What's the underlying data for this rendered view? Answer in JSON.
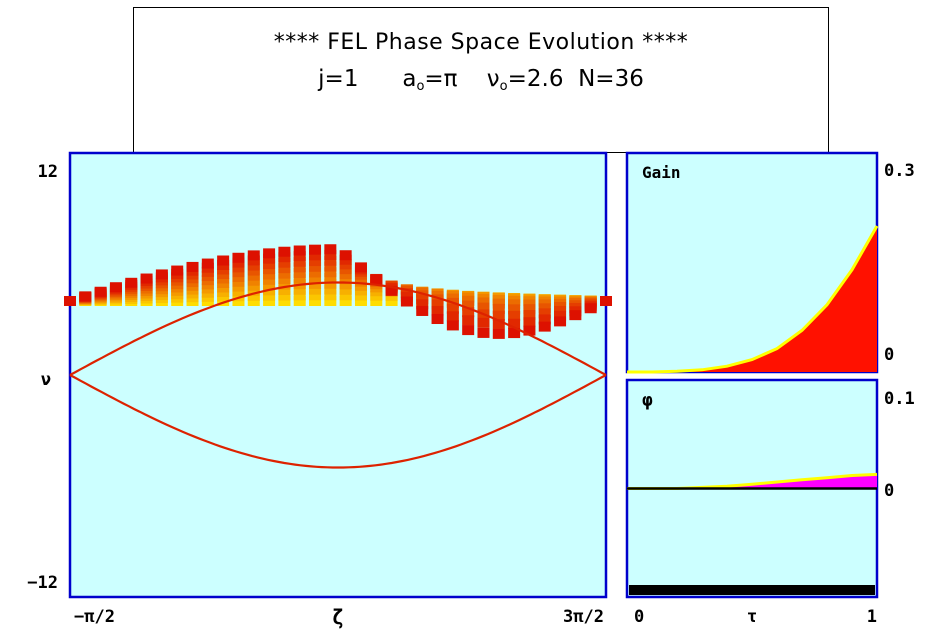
{
  "title": {
    "line1": "****   FEL Phase Space Evolution   ****",
    "j": "j=1",
    "a": "a",
    "a_sub": "o",
    "a_val": "=π",
    "nu": "ν",
    "nu_sub": "o",
    "nu_val": "=2.6",
    "n": "N=36"
  },
  "colors": {
    "panel_bg": "#ccffff",
    "frame": "#0000cc",
    "separatrix": "#dd2200",
    "electrons_hot": "#dd1100",
    "electrons_cold": "#ffdd00",
    "gain_fill": "#ff1100",
    "phase_fill": "#ff00ff",
    "trace_line": "#ffff00",
    "axis_bar": "#000000"
  },
  "chart_data": [
    {
      "type": "scatter",
      "name": "phase-space",
      "xlabel": "ζ",
      "ylabel": "ν",
      "x_tick_labels": [
        "−π/2",
        "3π/2"
      ],
      "y_tick_labels": [
        "12",
        "−12"
      ],
      "xlim": [
        -1.5708,
        4.7124
      ],
      "ylim": [
        -12,
        12
      ],
      "resonance_nu": 0,
      "separatrix": {
        "center_zeta": 1.5708,
        "upper_max_nu": 5.0,
        "lower_min_nu": -5.0,
        "endpoints_zeta": [
          -1.5708,
          4.7124
        ]
      },
      "electron_band": {
        "initial_nu": 4.0,
        "final_max_nu": 6.8,
        "final_min_nu": 0.0,
        "columns": 36
      }
    },
    {
      "type": "area",
      "name": "gain",
      "label": "Gain",
      "x_tick_labels": [
        "0",
        "1"
      ],
      "y_tick_labels": [
        "0.3",
        "0"
      ],
      "xlim": [
        0,
        1
      ],
      "ylim": [
        0,
        0.3
      ],
      "x": [
        0,
        0.1,
        0.2,
        0.3,
        0.4,
        0.5,
        0.6,
        0.7,
        0.8,
        0.9,
        1.0
      ],
      "values": [
        0.0,
        0.0,
        0.001,
        0.003,
        0.008,
        0.017,
        0.032,
        0.057,
        0.092,
        0.14,
        0.2
      ]
    },
    {
      "type": "area",
      "name": "phase",
      "label": "φ",
      "xlabel": "τ",
      "x_tick_labels": [
        "0",
        "1"
      ],
      "y_tick_labels": [
        "0.1",
        "0"
      ],
      "xlim": [
        0,
        1
      ],
      "ylim": [
        -0.1,
        0.1
      ],
      "x": [
        0,
        0.1,
        0.2,
        0.3,
        0.4,
        0.5,
        0.6,
        0.7,
        0.8,
        0.9,
        1.0
      ],
      "values": [
        0.0,
        0.0,
        0.0,
        0.001,
        0.002,
        0.004,
        0.006,
        0.008,
        0.01,
        0.012,
        0.013
      ]
    }
  ]
}
